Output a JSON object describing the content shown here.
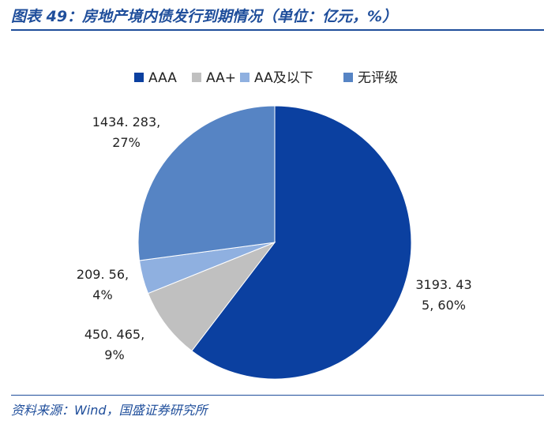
{
  "figure": {
    "title": "图表 49：房地产境内债发行到期情况（单位：亿元，%）",
    "source": "资料来源：Wind，国盛证券研究所"
  },
  "colors": {
    "accent": "#1f4e9b"
  },
  "chart_data": {
    "type": "pie",
    "title": "",
    "legend_position": "top",
    "slices": [
      {
        "name": "AAA",
        "value": 3193.435,
        "percent": 60,
        "color": "#0b40a0",
        "label_lines": [
          "3193. 43",
          "5,  60%"
        ]
      },
      {
        "name": "AA+",
        "value": 450.465,
        "percent": 9,
        "color": "#c0c0c0",
        "label_lines": [
          "450. 465,",
          "9%"
        ]
      },
      {
        "name": "AA及以下",
        "value": 209.56,
        "percent": 4,
        "color": "#8fb0e0",
        "label_lines": [
          "209. 56,",
          "4%"
        ]
      },
      {
        "name": "无评级",
        "value": 1434.283,
        "percent": 27,
        "color": "#5684c4",
        "label_lines": [
          "1434. 283,",
          "27%"
        ]
      }
    ]
  }
}
